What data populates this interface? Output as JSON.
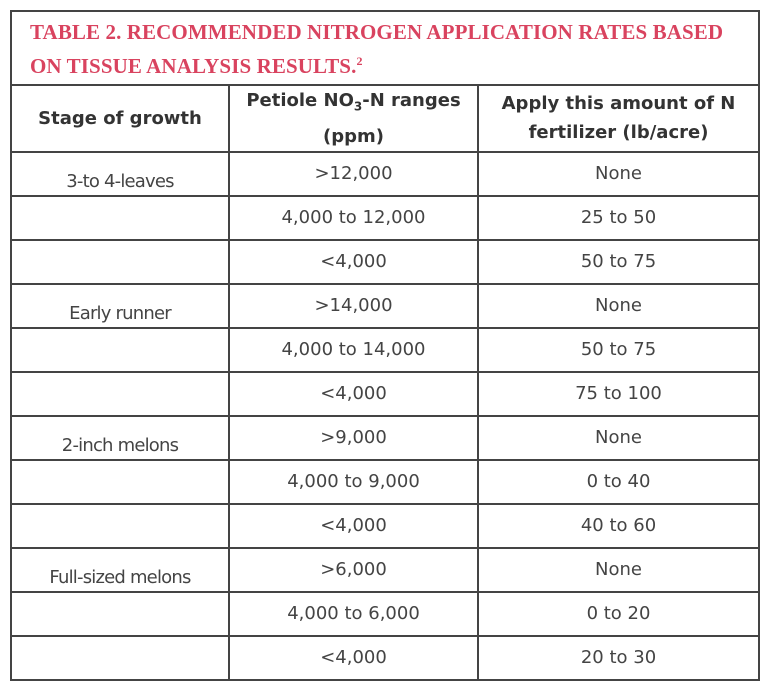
{
  "title": "TABLE 2. RECOMMENDED NITROGEN APPLICATION RATES BASED ON TISSUE ANALYSIS RESULTS.",
  "title_note": "2",
  "table": {
    "header": [
      "Stage of growth",
      {
        "parts": [
          "Petiole NO",
          "3",
          "-N ranges (ppm)"
        ]
      },
      "Apply this amount of N fertilizer (lb/acre)"
    ],
    "rows": [
      [
        "3-to 4-leaves",
        ">12,000",
        "None"
      ],
      [
        null,
        "4,000 to 12,000",
        "25 to 50"
      ],
      [
        null,
        "<4,000",
        "50 to 75"
      ],
      [
        "Early runner",
        ">14,000",
        "None"
      ],
      [
        null,
        "4,000 to 14,000",
        "50 to 75"
      ],
      [
        null,
        "<4,000",
        "75 to 100"
      ],
      [
        "2-inch melons",
        ">9,000",
        "None"
      ],
      [
        null,
        "4,000 to 9,000",
        "0 to 40"
      ],
      [
        null,
        "<4,000",
        "40 to 60"
      ],
      [
        "Full-sized melons",
        ">6,000",
        "None"
      ],
      [
        null,
        "4,000 to 6,000",
        "0 to 20"
      ],
      [
        null,
        "<4,000",
        "20 to 30"
      ]
    ]
  }
}
